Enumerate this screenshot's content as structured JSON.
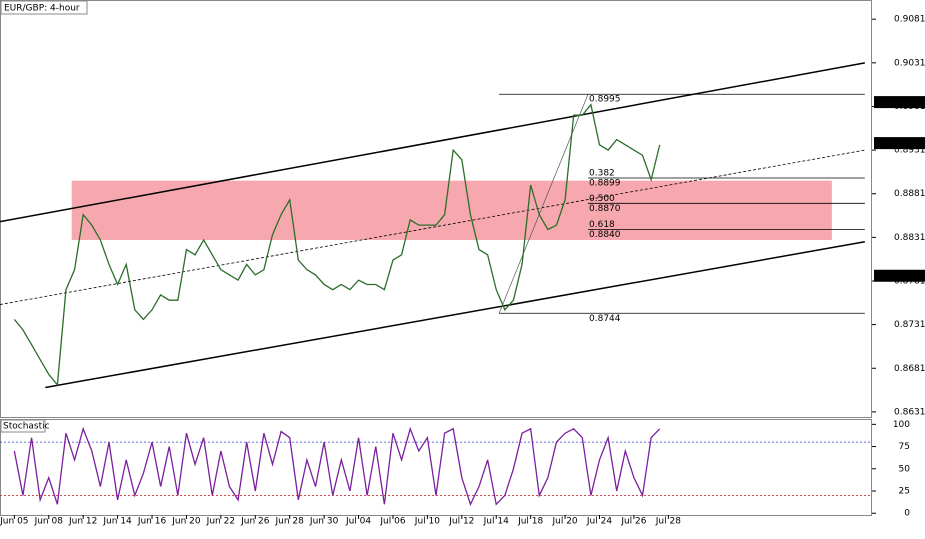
{
  "chart_data": {
    "type": "line",
    "title": "EUR/GBP: 4-hour",
    "color": "#2a6e2a",
    "x": [
      0,
      3,
      6,
      9,
      12,
      15,
      18,
      21,
      24,
      27,
      30,
      33,
      36,
      39,
      42,
      45,
      48,
      51,
      54,
      57,
      60,
      63,
      66,
      69,
      72,
      75,
      78,
      81,
      84,
      87,
      90,
      93,
      96,
      99,
      102,
      105,
      108,
      111,
      114,
      117,
      120,
      123,
      126,
      129,
      132,
      135,
      138,
      141,
      144,
      147,
      150,
      153,
      156,
      159,
      162,
      165,
      168,
      171,
      174,
      177,
      180,
      183,
      186,
      189,
      192,
      195,
      198,
      201,
      204,
      207,
      210,
      213,
      216,
      219,
      222,
      225
    ],
    "values": [
      0.8737,
      0.8725,
      0.8708,
      0.8691,
      0.8674,
      0.8662,
      0.8771,
      0.8794,
      0.8857,
      0.8845,
      0.8828,
      0.88,
      0.8777,
      0.88,
      0.8748,
      0.8737,
      0.8748,
      0.8765,
      0.8759,
      0.8759,
      0.8817,
      0.8811,
      0.8828,
      0.8811,
      0.8794,
      0.8788,
      0.8782,
      0.88,
      0.8788,
      0.8794,
      0.8834,
      0.8857,
      0.8874,
      0.8805,
      0.8794,
      0.8788,
      0.8777,
      0.8771,
      0.8777,
      0.8771,
      0.8782,
      0.8777,
      0.8777,
      0.8771,
      0.8805,
      0.8811,
      0.8851,
      0.8845,
      0.8845,
      0.8845,
      0.8857,
      0.8931,
      0.892,
      0.8857,
      0.8817,
      0.8811,
      0.8771,
      0.8748,
      0.8759,
      0.88,
      0.8891,
      0.8857,
      0.884,
      0.8845,
      0.8874,
      0.8971,
      0.8971,
      0.8983,
      0.8937,
      0.8931,
      0.8943,
      0.8937,
      0.8931,
      0.8925,
      0.8897,
      0.8937
    ],
    "xlim": [
      -5,
      299
    ],
    "xticks": [
      {
        "value": 0,
        "label": "Jun 05"
      },
      {
        "value": 12,
        "label": "Jun 08"
      },
      {
        "value": 24,
        "label": "Jun 12"
      },
      {
        "value": 36,
        "label": "Jun 14"
      },
      {
        "value": 48,
        "label": "Jun 16"
      },
      {
        "value": 60,
        "label": "Jun 20"
      },
      {
        "value": 72,
        "label": "Jun 22"
      },
      {
        "value": 84,
        "label": "Jun 26"
      },
      {
        "value": 96,
        "label": "Jun 28"
      },
      {
        "value": 108,
        "label": "Jun 30"
      },
      {
        "value": 120,
        "label": "Jul 04"
      },
      {
        "value": 132,
        "label": "Jul 06"
      },
      {
        "value": 144,
        "label": "Jul 10"
      },
      {
        "value": 156,
        "label": "Jul 12"
      },
      {
        "value": 168,
        "label": "Jul 14"
      },
      {
        "value": 180,
        "label": "Jul 18"
      },
      {
        "value": 192,
        "label": "Jul 20"
      },
      {
        "value": 204,
        "label": "Jul 24"
      },
      {
        "value": 216,
        "label": "Jul 26"
      },
      {
        "value": 228,
        "label": "Jul 28"
      }
    ],
    "ylim": [
      0.8624,
      0.9103
    ],
    "yticks": [
      0.9081,
      0.9031,
      0.8981,
      0.8931,
      0.8881,
      0.8831,
      0.8781,
      0.8731,
      0.8681,
      0.8631
    ],
    "price_markers": [
      0.8986,
      0.8939,
      0.8787
    ],
    "channel": [
      {
        "x": [
          -5,
          296.5
        ],
        "y": [
          0.8849,
          0.9031
        ]
      },
      {
        "x": [
          -5,
          296.5
        ],
        "y": [
          0.8754,
          0.8931
        ],
        "style": "dashed"
      },
      {
        "x": [
          10.8,
          296.5
        ],
        "y": [
          0.8659,
          0.8826
        ]
      }
    ],
    "zone": {
      "x": [
        20,
        285
      ],
      "y": [
        0.8828,
        0.8896
      ],
      "color": "#f7a8ae"
    },
    "fibonacci": {
      "swing": {
        "x": [
          169,
          200
        ],
        "y": [
          0.8744,
          0.8995
        ]
      },
      "end_x": 296.5,
      "levels": [
        {
          "ratio": null,
          "price": 0.8995,
          "start_x": 169
        },
        {
          "ratio": "0.382",
          "price": 0.8899,
          "start_x": 200
        },
        {
          "ratio": "0.500",
          "price": {
            "value": 0.887,
            "label": "0.8870"
          },
          "start_x": 200
        },
        {
          "ratio": "0.618",
          "price": {
            "value": 0.884,
            "label": "0.8840"
          },
          "start_x": 200
        },
        {
          "ratio": null,
          "price": 0.8744,
          "start_x": 169
        }
      ]
    },
    "stochastic": {
      "title": "Stochastic",
      "color": "#7a1fa0",
      "values": [
        70,
        20,
        85,
        15,
        40,
        10,
        90,
        60,
        95,
        70,
        30,
        80,
        15,
        60,
        20,
        45,
        80,
        30,
        75,
        20,
        90,
        55,
        85,
        20,
        70,
        30,
        15,
        80,
        25,
        90,
        55,
        92,
        85,
        15,
        60,
        30,
        80,
        20,
        60,
        25,
        85,
        20,
        75,
        10,
        90,
        60,
        95,
        70,
        85,
        20,
        90,
        95,
        40,
        10,
        30,
        60,
        10,
        20,
        50,
        90,
        95,
        20,
        40,
        80,
        90,
        95,
        85,
        20,
        60,
        85,
        25,
        70,
        40,
        20,
        85,
        95
      ],
      "ylim": [
        -2,
        106
      ],
      "yticks": [
        100,
        75,
        50,
        25,
        0
      ],
      "levels": [
        {
          "value": 80,
          "color": "#3344cc"
        },
        {
          "value": 20,
          "color": "#cc3333"
        }
      ]
    }
  }
}
